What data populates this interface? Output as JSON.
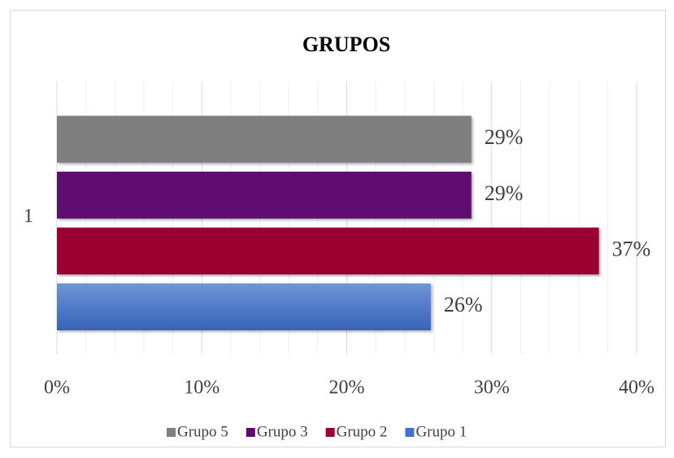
{
  "chart_data": {
    "type": "bar",
    "orientation": "horizontal",
    "title": "GRUPOS",
    "categories": [
      "1"
    ],
    "series": [
      {
        "name": "Grupo 5",
        "color": "#7f7f7f",
        "values": [
          28.6
        ],
        "value_labels": [
          "29%"
        ]
      },
      {
        "name": "Grupo 3",
        "color": "#5e0b70",
        "values": [
          28.6
        ],
        "value_labels": [
          "29%"
        ]
      },
      {
        "name": "Grupo 2",
        "color": "#9b0033",
        "values": [
          37.4
        ],
        "value_labels": [
          "37%"
        ]
      },
      {
        "name": "Grupo 1",
        "color": "#4472c4",
        "values": [
          25.8
        ],
        "value_labels": [
          "26%"
        ]
      }
    ],
    "xlim": [
      0,
      40
    ],
    "xticks": [
      {
        "value": 0,
        "label": "0%"
      },
      {
        "value": 10,
        "label": "10%"
      },
      {
        "value": 20,
        "label": "20%"
      },
      {
        "value": 30,
        "label": "30%"
      },
      {
        "value": 40,
        "label": "40%"
      }
    ],
    "xminor_ticks": [
      2,
      4,
      6,
      8,
      12,
      14,
      16,
      18,
      22,
      24,
      26,
      28,
      32,
      34,
      36,
      38
    ],
    "grid": true,
    "legend": "bottom"
  }
}
